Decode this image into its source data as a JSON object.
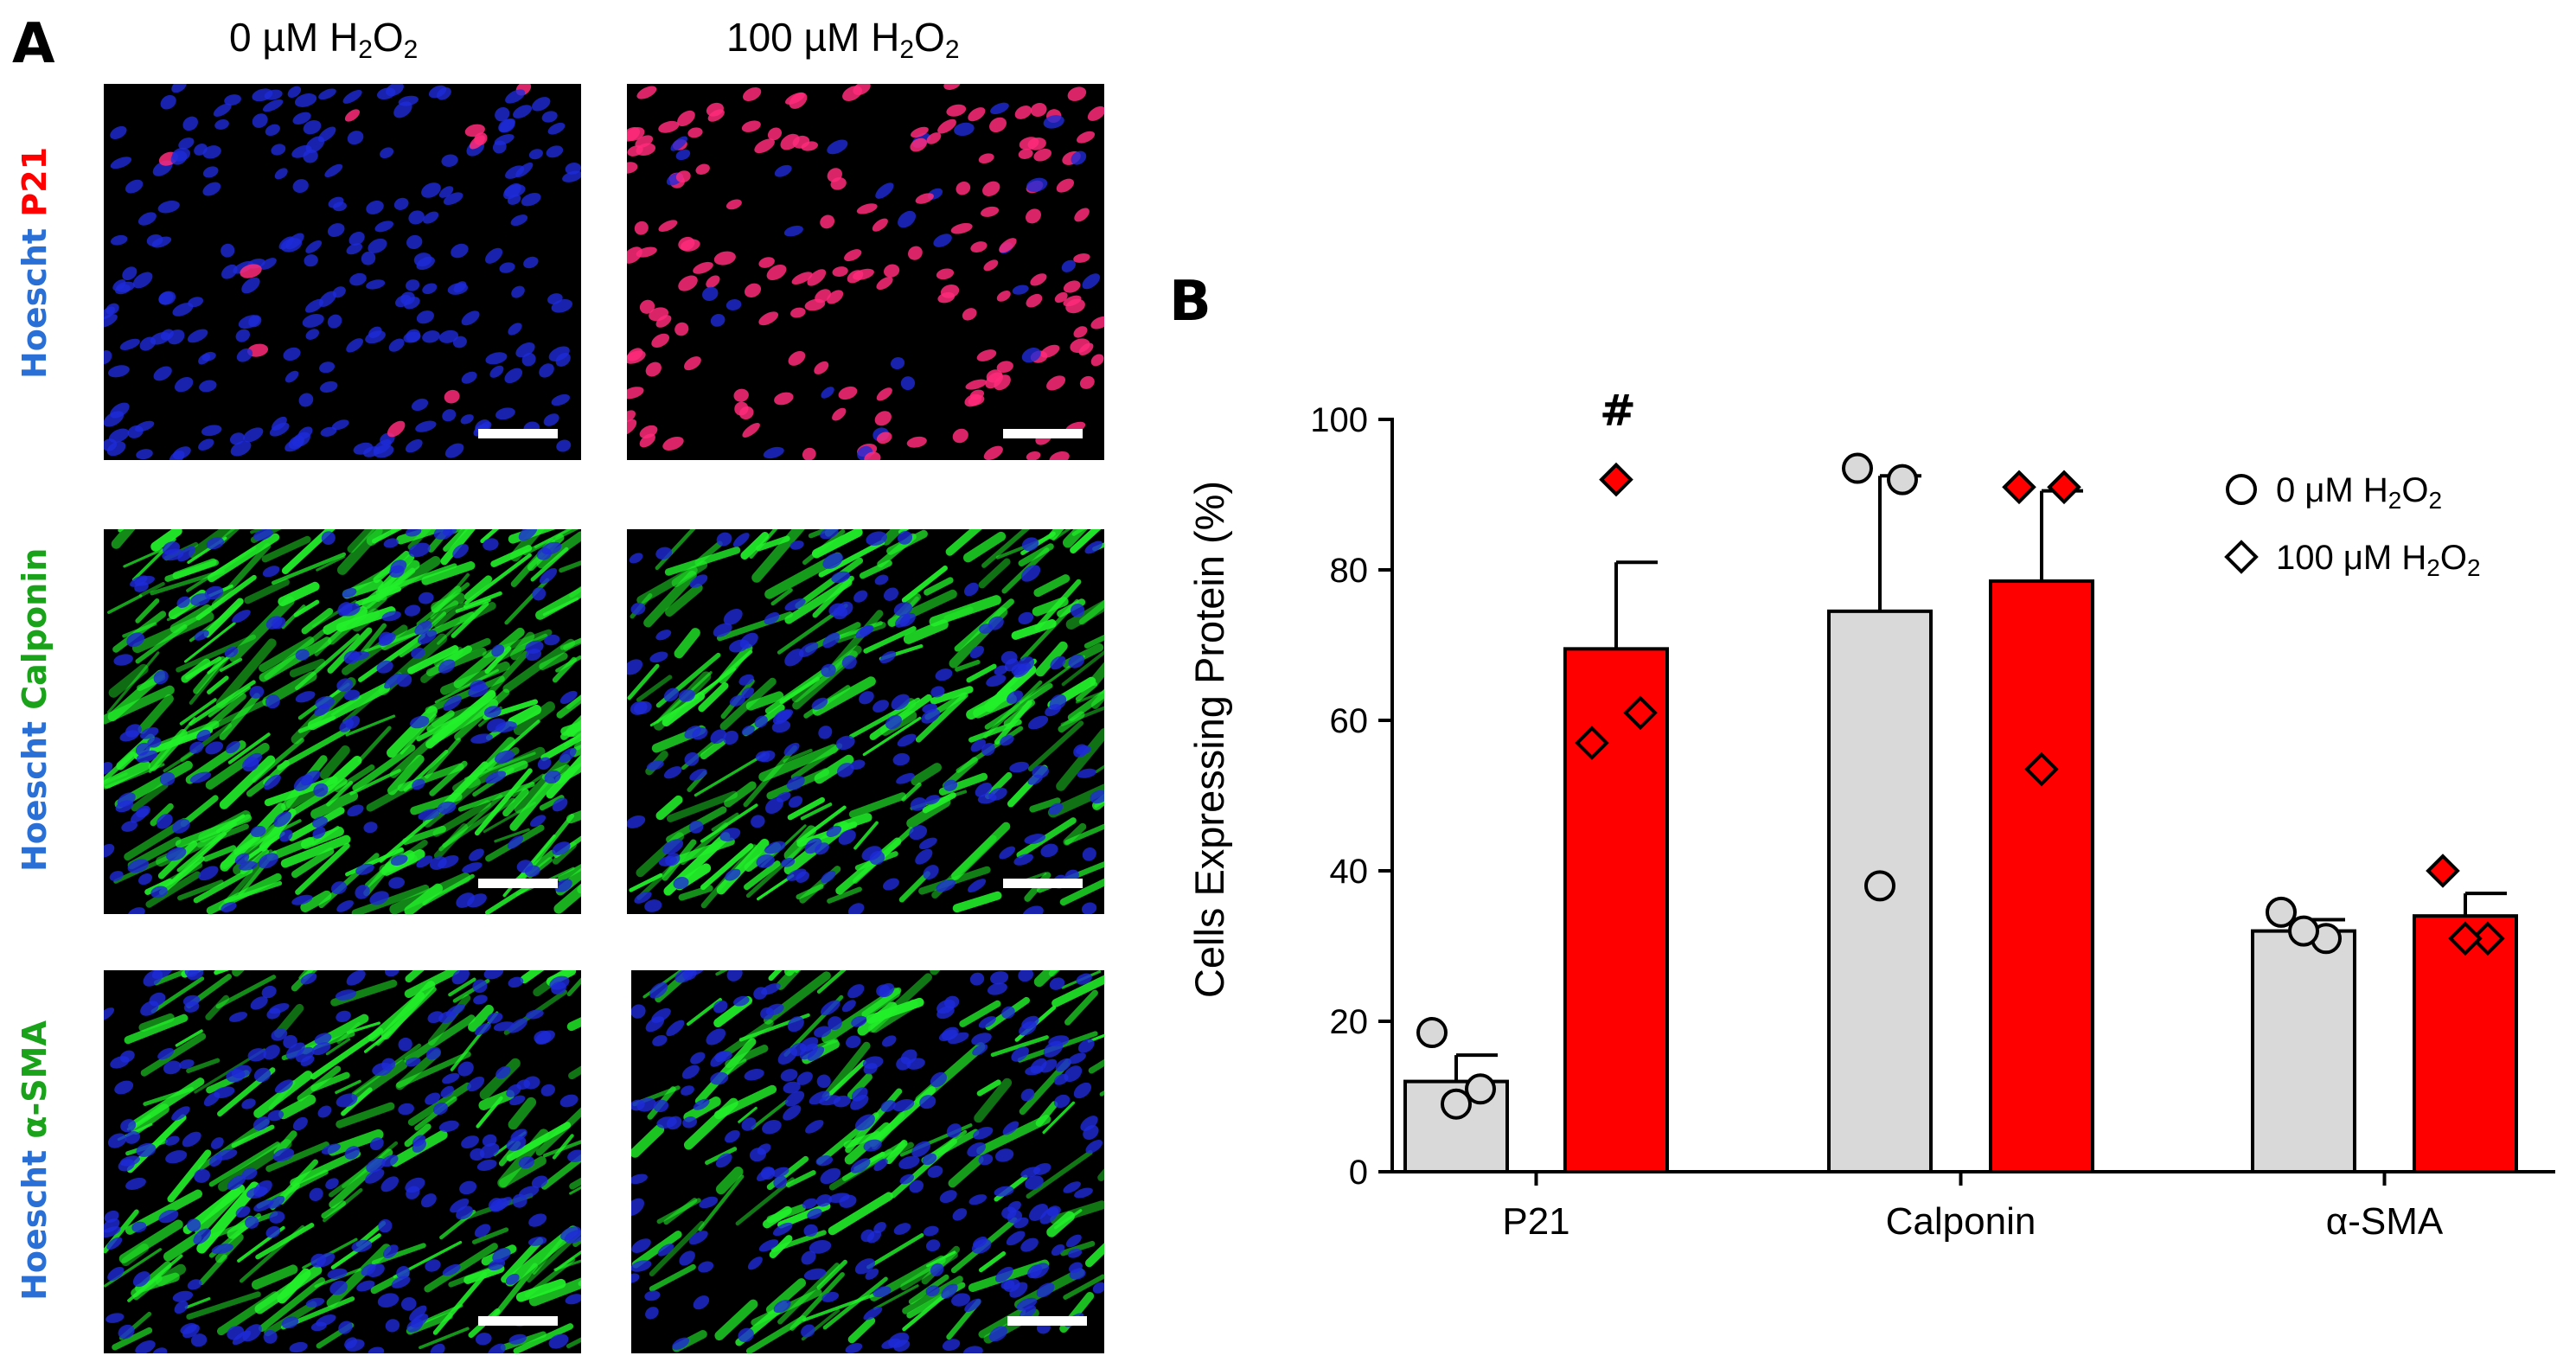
{
  "panel_a": {
    "letter": "A",
    "columns": [
      {
        "conc": "0 µM H",
        "sub1": "2",
        "mid": "O",
        "sub2": "2"
      },
      {
        "conc": "100 µM H",
        "sub1": "2",
        "mid": "O",
        "sub2": "2"
      }
    ],
    "rows": [
      {
        "stain1": "Hoescht",
        "stain2": "P21",
        "stain2_color": "#ff0000"
      },
      {
        "stain1": "Hoescht",
        "stain2": "Calponin",
        "stain2_color": "#1aa31a"
      },
      {
        "stain1": "Hoescht",
        "stain2": "α-SMA",
        "stain2_color": "#1aa31a"
      }
    ],
    "image_colors": {
      "nuclei": "#1e2ad8",
      "p21": "#ff2a7a",
      "filament": "#22f02a",
      "background": "#000000"
    }
  },
  "panel_b": {
    "letter": "B",
    "legend": [
      {
        "marker": "circle",
        "prefix": "0 ",
        "mu": "μ",
        "unit": "M H",
        "sub1": "2",
        "mid": "O",
        "sub2": "2"
      },
      {
        "marker": "diamond",
        "prefix": "100 ",
        "mu": "μ",
        "unit": "M H",
        "sub1": "2",
        "mid": "O",
        "sub2": "2"
      }
    ],
    "significance_mark": "#"
  },
  "chart_data": {
    "type": "bar",
    "ylabel": "Cells Expressing Protein  (%)",
    "ylim": [
      0,
      100
    ],
    "yticks": [
      0,
      20,
      40,
      60,
      80,
      100
    ],
    "categories": [
      "P21",
      "Calponin",
      "α-SMA"
    ],
    "series": [
      {
        "color": "#d9d9d9",
        "values": [
          12,
          74.5,
          32
        ],
        "sem": [
          3.5,
          18,
          1.5
        ],
        "points": [
          [
            9,
            11,
            18.5
          ],
          [
            93.5,
            92,
            38
          ],
          [
            34.5,
            31,
            32
          ]
        ]
      },
      {
        "color": "#ff0000",
        "values": [
          69.5,
          78.5,
          34
        ],
        "sem": [
          11.5,
          12,
          3
        ],
        "points": [
          [
            92,
            61,
            57
          ],
          [
            91,
            91,
            53.5
          ],
          [
            40,
            31,
            31
          ]
        ]
      }
    ]
  }
}
